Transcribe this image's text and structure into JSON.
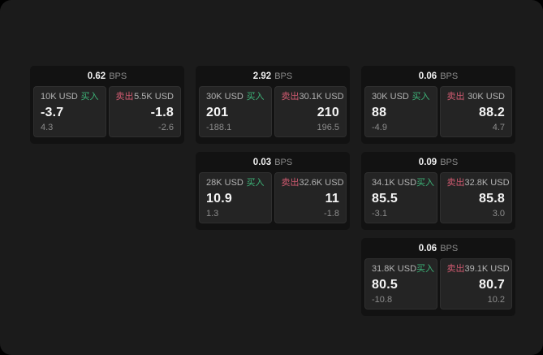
{
  "labels": {
    "buy": "买入",
    "sell": "卖出",
    "bps_unit": "BPS"
  },
  "colors": {
    "page_bg": "#1b1b1b",
    "card_bg": "#121212",
    "panel_bg": "#242424",
    "buy_green": "#3db378",
    "sell_red": "#cf5a70",
    "value_white": "#f5f5f5",
    "muted_gray": "#8c8c8c"
  },
  "cards": [
    {
      "bps": "0.62",
      "buy": {
        "amount": "10K USD",
        "value": "-3.7",
        "delta": "4.3"
      },
      "sell": {
        "amount": "5.5K USD",
        "value": "-1.8",
        "delta": "-2.6"
      }
    },
    {
      "bps": "2.92",
      "buy": {
        "amount": "30K USD",
        "value": "201",
        "delta": "-188.1"
      },
      "sell": {
        "amount": "30.1K USD",
        "value": "210",
        "delta": "196.5"
      }
    },
    {
      "bps": "0.06",
      "buy": {
        "amount": "30K USD",
        "value": "88",
        "delta": "-4.9"
      },
      "sell": {
        "amount": "30K USD",
        "value": "88.2",
        "delta": "4.7"
      }
    },
    {
      "bps": "0.03",
      "buy": {
        "amount": "28K USD",
        "value": "10.9",
        "delta": "1.3"
      },
      "sell": {
        "amount": "32.6K USD",
        "value": "11",
        "delta": "-1.8"
      }
    },
    {
      "bps": "0.09",
      "buy": {
        "amount": "34.1K USD",
        "value": "85.5",
        "delta": "-3.1"
      },
      "sell": {
        "amount": "32.8K USD",
        "value": "85.8",
        "delta": "3.0"
      }
    },
    {
      "bps": "0.06",
      "buy": {
        "amount": "31.8K USD",
        "value": "80.5",
        "delta": "-10.8"
      },
      "sell": {
        "amount": "39.1K USD",
        "value": "80.7",
        "delta": "10.2"
      }
    }
  ]
}
